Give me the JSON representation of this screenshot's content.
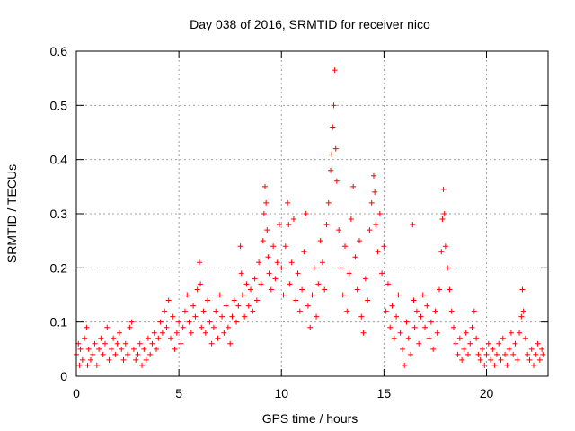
{
  "chart_data": {
    "type": "scatter",
    "title": "Day 038 of 2016, SRMTID for receiver nico",
    "xlabel": "GPS time / hours",
    "ylabel": "SRMTID / TECUs",
    "xlim": [
      0,
      23
    ],
    "ylim": [
      0,
      0.6
    ],
    "xticks": [
      0,
      5,
      10,
      15,
      20
    ],
    "xtick_labels": [
      "0",
      "5",
      "10",
      "15",
      "20"
    ],
    "yticks": [
      0,
      0.1,
      0.2,
      0.3,
      0.4,
      0.5,
      0.6
    ],
    "ytick_labels": [
      "0",
      "0.1",
      "0.2",
      "0.3",
      "0.4",
      "0.5",
      "0.6"
    ],
    "grid": true,
    "marker": "+",
    "color": "#ff0000",
    "series": [
      {
        "name": "SRMTID",
        "points": [
          [
            0.0,
            0.04
          ],
          [
            0.1,
            0.06
          ],
          [
            0.15,
            0.02
          ],
          [
            0.2,
            0.05
          ],
          [
            0.3,
            0.03
          ],
          [
            0.4,
            0.07
          ],
          [
            0.5,
            0.09
          ],
          [
            0.55,
            0.02
          ],
          [
            0.6,
            0.05
          ],
          [
            0.7,
            0.03
          ],
          [
            0.8,
            0.04
          ],
          [
            0.9,
            0.06
          ],
          [
            1.0,
            0.02
          ],
          [
            1.1,
            0.05
          ],
          [
            1.2,
            0.07
          ],
          [
            1.3,
            0.04
          ],
          [
            1.4,
            0.06
          ],
          [
            1.5,
            0.09
          ],
          [
            1.6,
            0.03
          ],
          [
            1.7,
            0.05
          ],
          [
            1.8,
            0.07
          ],
          [
            1.9,
            0.04
          ],
          [
            2.0,
            0.06
          ],
          [
            2.1,
            0.08
          ],
          [
            2.2,
            0.05
          ],
          [
            2.3,
            0.03
          ],
          [
            2.4,
            0.06
          ],
          [
            2.5,
            0.04
          ],
          [
            2.6,
            0.09
          ],
          [
            2.7,
            0.1
          ],
          [
            2.8,
            0.05
          ],
          [
            2.9,
            0.03
          ],
          [
            3.0,
            0.04
          ],
          [
            3.1,
            0.06
          ],
          [
            3.2,
            0.02
          ],
          [
            3.3,
            0.05
          ],
          [
            3.4,
            0.03
          ],
          [
            3.5,
            0.07
          ],
          [
            3.6,
            0.04
          ],
          [
            3.7,
            0.06
          ],
          [
            3.8,
            0.08
          ],
          [
            3.9,
            0.05
          ],
          [
            4.0,
            0.07
          ],
          [
            4.1,
            0.1
          ],
          [
            4.2,
            0.08
          ],
          [
            4.3,
            0.12
          ],
          [
            4.4,
            0.09
          ],
          [
            4.5,
            0.14
          ],
          [
            4.6,
            0.07
          ],
          [
            4.7,
            0.11
          ],
          [
            4.8,
            0.05
          ],
          [
            4.9,
            0.08
          ],
          [
            5.0,
            0.1
          ],
          [
            5.1,
            0.06
          ],
          [
            5.2,
            0.09
          ],
          [
            5.3,
            0.12
          ],
          [
            5.4,
            0.15
          ],
          [
            5.5,
            0.1
          ],
          [
            5.6,
            0.08
          ],
          [
            5.7,
            0.13
          ],
          [
            5.8,
            0.11
          ],
          [
            5.9,
            0.16
          ],
          [
            6.0,
            0.21
          ],
          [
            6.05,
            0.17
          ],
          [
            6.1,
            0.09
          ],
          [
            6.2,
            0.12
          ],
          [
            6.3,
            0.08
          ],
          [
            6.4,
            0.14
          ],
          [
            6.5,
            0.1
          ],
          [
            6.6,
            0.06
          ],
          [
            6.7,
            0.09
          ],
          [
            6.8,
            0.12
          ],
          [
            6.9,
            0.07
          ],
          [
            7.0,
            0.15
          ],
          [
            7.1,
            0.11
          ],
          [
            7.2,
            0.08
          ],
          [
            7.3,
            0.13
          ],
          [
            7.4,
            0.09
          ],
          [
            7.5,
            0.06
          ],
          [
            7.6,
            0.11
          ],
          [
            7.7,
            0.14
          ],
          [
            7.8,
            0.1
          ],
          [
            7.9,
            0.13
          ],
          [
            8.0,
            0.24
          ],
          [
            8.05,
            0.19
          ],
          [
            8.1,
            0.15
          ],
          [
            8.2,
            0.11
          ],
          [
            8.3,
            0.17
          ],
          [
            8.4,
            0.13
          ],
          [
            8.5,
            0.16
          ],
          [
            8.6,
            0.12
          ],
          [
            8.7,
            0.18
          ],
          [
            8.8,
            0.14
          ],
          [
            8.9,
            0.21
          ],
          [
            9.0,
            0.17
          ],
          [
            9.1,
            0.25
          ],
          [
            9.15,
            0.3
          ],
          [
            9.2,
            0.35
          ],
          [
            9.25,
            0.32
          ],
          [
            9.3,
            0.27
          ],
          [
            9.35,
            0.22
          ],
          [
            9.4,
            0.19
          ],
          [
            9.5,
            0.16
          ],
          [
            9.6,
            0.24
          ],
          [
            9.7,
            0.18
          ],
          [
            9.8,
            0.21
          ],
          [
            9.9,
            0.28
          ],
          [
            10.0,
            0.2
          ],
          [
            10.1,
            0.15
          ],
          [
            10.2,
            0.24
          ],
          [
            10.3,
            0.32
          ],
          [
            10.35,
            0.28
          ],
          [
            10.4,
            0.17
          ],
          [
            10.5,
            0.21
          ],
          [
            10.6,
            0.29
          ],
          [
            10.7,
            0.14
          ],
          [
            10.8,
            0.19
          ],
          [
            10.9,
            0.12
          ],
          [
            11.0,
            0.16
          ],
          [
            11.1,
            0.23
          ],
          [
            11.2,
            0.3
          ],
          [
            11.3,
            0.13
          ],
          [
            11.4,
            0.09
          ],
          [
            11.5,
            0.15
          ],
          [
            11.6,
            0.2
          ],
          [
            11.7,
            0.11
          ],
          [
            11.8,
            0.17
          ],
          [
            11.9,
            0.25
          ],
          [
            12.0,
            0.21
          ],
          [
            12.1,
            0.16
          ],
          [
            12.2,
            0.28
          ],
          [
            12.3,
            0.32
          ],
          [
            12.4,
            0.38
          ],
          [
            12.45,
            0.41
          ],
          [
            12.5,
            0.46
          ],
          [
            12.55,
            0.5
          ],
          [
            12.6,
            0.565
          ],
          [
            12.65,
            0.42
          ],
          [
            12.7,
            0.36
          ],
          [
            12.8,
            0.27
          ],
          [
            12.9,
            0.2
          ],
          [
            13.0,
            0.15
          ],
          [
            13.1,
            0.24
          ],
          [
            13.2,
            0.12
          ],
          [
            13.3,
            0.19
          ],
          [
            13.4,
            0.29
          ],
          [
            13.5,
            0.35
          ],
          [
            13.6,
            0.22
          ],
          [
            13.7,
            0.16
          ],
          [
            13.8,
            0.25
          ],
          [
            13.9,
            0.11
          ],
          [
            14.0,
            0.08
          ],
          [
            14.1,
            0.18
          ],
          [
            14.2,
            0.14
          ],
          [
            14.3,
            0.27
          ],
          [
            14.4,
            0.32
          ],
          [
            14.5,
            0.37
          ],
          [
            14.55,
            0.34
          ],
          [
            14.6,
            0.28
          ],
          [
            14.7,
            0.23
          ],
          [
            14.8,
            0.3
          ],
          [
            14.9,
            0.19
          ],
          [
            15.0,
            0.24
          ],
          [
            15.1,
            0.12
          ],
          [
            15.2,
            0.17
          ],
          [
            15.3,
            0.09
          ],
          [
            15.4,
            0.13
          ],
          [
            15.5,
            0.07
          ],
          [
            15.6,
            0.11
          ],
          [
            15.7,
            0.15
          ],
          [
            15.8,
            0.08
          ],
          [
            15.9,
            0.05
          ],
          [
            16.0,
            0.02
          ],
          [
            16.1,
            0.1
          ],
          [
            16.2,
            0.07
          ],
          [
            16.3,
            0.04
          ],
          [
            16.4,
            0.28
          ],
          [
            16.45,
            0.14
          ],
          [
            16.5,
            0.09
          ],
          [
            16.6,
            0.12
          ],
          [
            16.7,
            0.06
          ],
          [
            16.8,
            0.11
          ],
          [
            16.9,
            0.15
          ],
          [
            17.0,
            0.09
          ],
          [
            17.1,
            0.13
          ],
          [
            17.2,
            0.07
          ],
          [
            17.3,
            0.1
          ],
          [
            17.4,
            0.05
          ],
          [
            17.5,
            0.12
          ],
          [
            17.6,
            0.08
          ],
          [
            17.7,
            0.16
          ],
          [
            17.8,
            0.23
          ],
          [
            17.85,
            0.29
          ],
          [
            17.9,
            0.345
          ],
          [
            17.95,
            0.3
          ],
          [
            18.0,
            0.24
          ],
          [
            18.1,
            0.2
          ],
          [
            18.2,
            0.16
          ],
          [
            18.3,
            0.12
          ],
          [
            18.4,
            0.09
          ],
          [
            18.5,
            0.06
          ],
          [
            18.6,
            0.04
          ],
          [
            18.7,
            0.07
          ],
          [
            18.8,
            0.03
          ],
          [
            18.9,
            0.05
          ],
          [
            19.0,
            0.08
          ],
          [
            19.1,
            0.04
          ],
          [
            19.2,
            0.06
          ],
          [
            19.3,
            0.09
          ],
          [
            19.4,
            0.12
          ],
          [
            19.5,
            0.07
          ],
          [
            19.6,
            0.04
          ],
          [
            19.7,
            0.03
          ],
          [
            19.8,
            0.05
          ],
          [
            19.9,
            0.02
          ],
          [
            20.0,
            0.04
          ],
          [
            20.1,
            0.06
          ],
          [
            20.2,
            0.03
          ],
          [
            20.3,
            0.05
          ],
          [
            20.4,
            0.02
          ],
          [
            20.5,
            0.04
          ],
          [
            20.6,
            0.06
          ],
          [
            20.7,
            0.03
          ],
          [
            20.8,
            0.07
          ],
          [
            20.9,
            0.04
          ],
          [
            21.0,
            0.02
          ],
          [
            21.1,
            0.05
          ],
          [
            21.2,
            0.08
          ],
          [
            21.3,
            0.04
          ],
          [
            21.4,
            0.06
          ],
          [
            21.5,
            0.03
          ],
          [
            21.6,
            0.08
          ],
          [
            21.7,
            0.11
          ],
          [
            21.75,
            0.16
          ],
          [
            21.8,
            0.12
          ],
          [
            21.9,
            0.07
          ],
          [
            22.0,
            0.04
          ],
          [
            22.1,
            0.03
          ],
          [
            22.2,
            0.05
          ],
          [
            22.3,
            0.02
          ],
          [
            22.4,
            0.04
          ],
          [
            22.5,
            0.06
          ],
          [
            22.6,
            0.03
          ],
          [
            22.7,
            0.05
          ],
          [
            22.75,
            0.04
          ]
        ]
      }
    ]
  }
}
